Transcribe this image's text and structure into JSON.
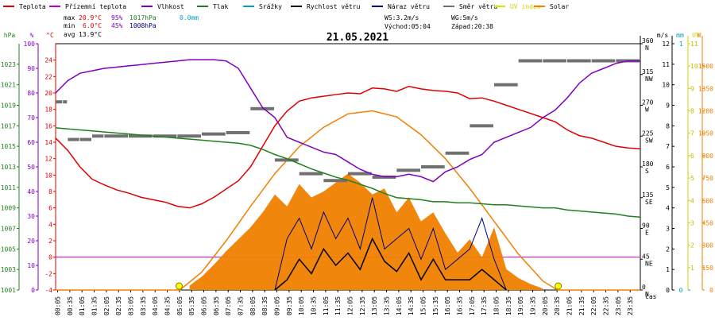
{
  "chart_data": {
    "type": "line",
    "date": "21.05.2021",
    "legend": [
      {
        "key": "temp",
        "label": "Teplota",
        "color": "#e00000"
      },
      {
        "key": "ground",
        "label": "Přízemní teplota",
        "color": "#c000c0"
      },
      {
        "key": "humidity",
        "label": "Vlhkost",
        "color": "#8000c0"
      },
      {
        "key": "pressure",
        "label": "Tlak",
        "color": "#208020"
      },
      {
        "key": "rain",
        "label": "Srážky",
        "color": "#00a0c0"
      },
      {
        "key": "wind",
        "label": "Rychlost větru",
        "color": "#000000"
      },
      {
        "key": "gust",
        "label": "Náraz větru",
        "color": "#000080"
      },
      {
        "key": "winddir",
        "label": "Směr větru",
        "color": "#707070"
      },
      {
        "key": "uv",
        "label": "UV index",
        "color": "#e0e000"
      },
      {
        "key": "solar",
        "label": "Solar",
        "color": "#f08000"
      }
    ],
    "stats": {
      "max_label": "max",
      "max_temp": "20.9°C",
      "max_hum": "95%",
      "max_press": "1017hPa",
      "rain_total": "0.0mm",
      "min_label": "min",
      "min_temp": "6.0°C",
      "min_hum": "45%",
      "min_press": "1008hPa",
      "avg_label": "avg",
      "avg_temp": "13.9°C",
      "ws": "WS:3.2m/s",
      "wg": "WG:5m/s",
      "sunrise": "Východ:05:04",
      "sunset": "Západ:20:38"
    },
    "axes": {
      "hpa": {
        "unit": "hPa",
        "ticks": [
          "1001",
          "1003",
          "1005",
          "1007",
          "1009",
          "1011",
          "1013",
          "1015",
          "1017",
          "1019",
          "1021",
          "1023"
        ],
        "range": [
          1001,
          1025
        ]
      },
      "pct": {
        "unit": "%",
        "ticks": [
          "0",
          "10",
          "20",
          "30",
          "40",
          "50",
          "60",
          "70",
          "80",
          "90",
          "100"
        ],
        "range": [
          0,
          100
        ]
      },
      "temp": {
        "unit": "°C",
        "ticks": [
          "-4",
          "-2",
          "0",
          "2",
          "4",
          "6",
          "8",
          "10",
          "12",
          "14",
          "16",
          "18",
          "20",
          "22",
          "24"
        ],
        "range": [
          -4,
          26
        ]
      },
      "dir": {
        "ticks": [
          "N",
          "NE",
          "E",
          "SE",
          "S",
          "SW",
          "W",
          "NW",
          "N"
        ],
        "values": [
          "0",
          "45",
          "90",
          "135",
          "180",
          "225",
          "270",
          "315",
          "360"
        ],
        "range": [
          0,
          360
        ]
      },
      "ms": {
        "unit": "m/s",
        "ticks": [
          "0",
          "1",
          "2",
          "3",
          "4",
          "5",
          "6",
          "7",
          "8",
          "9",
          "10",
          "11",
          "12"
        ],
        "range": [
          0,
          12
        ]
      },
      "mm": {
        "unit": "mm",
        "ticks": [
          "0",
          "1"
        ],
        "range": [
          0,
          1
        ]
      },
      "uv": {
        "unit": "UV",
        "ticks": [
          "1",
          "2",
          "3",
          "4",
          "5",
          "6",
          "7",
          "8",
          "9",
          "10",
          "11"
        ],
        "range": [
          0,
          11
        ]
      },
      "wm2": {
        "unit": "W",
        "ticks": [
          "0",
          "150",
          "300",
          "450",
          "600",
          "750",
          "900",
          "1050",
          "1200",
          "1350",
          "1500"
        ],
        "range": [
          0,
          1650
        ]
      },
      "x": {
        "unit": "čas",
        "range": [
          0,
          24
        ],
        "ticks": [
          "00:05",
          "00:35",
          "01:05",
          "01:35",
          "02:05",
          "02:35",
          "03:05",
          "03:35",
          "04:05",
          "04:35",
          "05:05",
          "05:35",
          "06:05",
          "06:35",
          "07:05",
          "07:35",
          "08:05",
          "08:35",
          "09:05",
          "09:35",
          "10:05",
          "10:35",
          "11:05",
          "11:35",
          "12:05",
          "12:35",
          "13:05",
          "13:35",
          "14:05",
          "14:35",
          "15:05",
          "15:35",
          "16:05",
          "16:35",
          "17:05",
          "17:35",
          "18:05",
          "18:35",
          "19:05",
          "19:35",
          "20:05",
          "20:35",
          "21:05",
          "21:35",
          "22:05",
          "22:35",
          "23:05",
          "23:35"
        ]
      }
    },
    "series": [
      {
        "key": "temp",
        "name": "Teplota",
        "axis": "temp",
        "x": [
          0,
          0.5,
          1,
          1.5,
          2,
          2.5,
          3,
          3.5,
          4,
          4.5,
          5,
          5.5,
          6,
          6.5,
          7,
          7.5,
          8,
          8.5,
          9,
          9.5,
          10,
          10.5,
          11,
          11.5,
          12,
          12.5,
          13,
          13.5,
          14,
          14.5,
          15,
          15.5,
          16,
          16.5,
          17,
          17.5,
          18,
          18.5,
          19,
          19.5,
          20,
          20.5,
          21,
          21.5,
          22,
          22.5,
          23,
          23.5,
          24
        ],
        "y": [
          14.5,
          13,
          11,
          9.5,
          8.8,
          8.2,
          7.8,
          7.3,
          7,
          6.7,
          6.2,
          6,
          6.5,
          7.3,
          8.3,
          9.3,
          11,
          13.5,
          16,
          17.8,
          19,
          19.4,
          19.6,
          19.8,
          20,
          19.9,
          20.6,
          20.5,
          20.2,
          20.8,
          20.5,
          20.3,
          20.2,
          20,
          19.3,
          19.4,
          19,
          18.5,
          18,
          17.5,
          17,
          16.5,
          15.5,
          14.8,
          14.5,
          14,
          13.5,
          13.3,
          13.2
        ]
      },
      {
        "key": "humidity",
        "name": "Vlhkost",
        "axis": "pct",
        "x": [
          0,
          0.5,
          1,
          1.5,
          2,
          2.5,
          3,
          3.5,
          4,
          4.5,
          5,
          5.5,
          6,
          6.5,
          7,
          7.5,
          8,
          8.5,
          9,
          9.5,
          10,
          10.5,
          11,
          11.5,
          12,
          12.5,
          13,
          13.5,
          14,
          14.5,
          15,
          15.5,
          16,
          16.5,
          17,
          17.5,
          18,
          18.5,
          19,
          19.5,
          20,
          20.5,
          21,
          21.5,
          22,
          22.5,
          23,
          23.5,
          24
        ],
        "y": [
          80,
          85,
          88,
          89,
          90,
          90.5,
          91,
          91.5,
          92,
          92.5,
          93,
          93.5,
          93.5,
          93.5,
          93,
          90,
          82,
          74,
          70,
          62,
          60,
          58,
          56,
          55,
          52,
          49,
          47,
          46,
          46,
          47,
          46,
          44,
          48,
          50,
          53,
          55,
          60,
          62,
          64,
          66,
          70,
          73,
          78,
          84,
          88,
          90,
          92,
          93,
          93
        ]
      },
      {
        "key": "pressure",
        "name": "Tlak",
        "axis": "hpa",
        "x": [
          0,
          0.5,
          1,
          1.5,
          2,
          2.5,
          3,
          3.5,
          4,
          4.5,
          5,
          5.5,
          6,
          6.5,
          7,
          7.5,
          8,
          8.5,
          9,
          9.5,
          10,
          10.5,
          11,
          11.5,
          12,
          12.5,
          13,
          13.5,
          14,
          14.5,
          15,
          15.5,
          16,
          16.5,
          17,
          17.5,
          18,
          18.5,
          19,
          19.5,
          20,
          20.5,
          21,
          21.5,
          22,
          22.5,
          23,
          23.5,
          24
        ],
        "y": [
          1016.8,
          1016.7,
          1016.6,
          1016.5,
          1016.4,
          1016.3,
          1016.2,
          1016.1,
          1016,
          1015.9,
          1015.8,
          1015.7,
          1015.6,
          1015.5,
          1015.4,
          1015.3,
          1015.1,
          1014.7,
          1014.2,
          1013.8,
          1013.3,
          1012.8,
          1012.4,
          1012,
          1011.7,
          1011.3,
          1010.9,
          1010.4,
          1010,
          1009.9,
          1009.8,
          1009.6,
          1009.6,
          1009.5,
          1009.5,
          1009.4,
          1009.3,
          1009.3,
          1009.2,
          1009.1,
          1009,
          1009,
          1008.8,
          1008.7,
          1008.6,
          1008.5,
          1008.4,
          1008.2,
          1008.1
        ]
      },
      {
        "key": "solar",
        "name": "Solar",
        "axis": "wm2",
        "x": [
          0,
          5.1,
          6,
          7,
          8,
          9,
          10,
          11,
          12,
          13,
          14,
          15,
          16,
          17,
          18,
          19,
          20,
          20.6,
          24
        ],
        "y": [
          0,
          0,
          120,
          330,
          560,
          780,
          960,
          1090,
          1180,
          1200,
          1160,
          1040,
          880,
          680,
          460,
          240,
          60,
          0,
          0
        ]
      },
      {
        "key": "solar_measured",
        "name": "Solar",
        "axis": "wm2",
        "x": [
          5.5,
          6,
          6.5,
          7,
          7.5,
          8,
          8.5,
          9,
          9.5,
          10,
          10.5,
          11,
          11.5,
          12,
          12.5,
          13,
          13.5,
          14,
          14.5,
          15,
          15.5,
          16,
          16.5,
          17,
          17.5,
          18,
          18.5,
          19,
          19.5,
          20
        ],
        "y": [
          30,
          90,
          170,
          260,
          340,
          420,
          520,
          640,
          560,
          710,
          620,
          660,
          720,
          780,
          720,
          640,
          680,
          520,
          620,
          460,
          520,
          380,
          250,
          340,
          220,
          420,
          140,
          80,
          40,
          10
        ]
      },
      {
        "key": "wind",
        "name": "Rychlost větru",
        "axis": "ms",
        "x": [
          9,
          9.5,
          10,
          10.5,
          11,
          11.5,
          12,
          12.5,
          13,
          13.5,
          14,
          14.5,
          15,
          15.5,
          16,
          16.5,
          17,
          17.5,
          18,
          18.5
        ],
        "y": [
          0,
          0.5,
          1.5,
          0.8,
          2,
          1.2,
          1.8,
          1,
          2.5,
          1.4,
          0.9,
          1.8,
          0.5,
          1.5,
          0.5,
          0.5,
          0.5,
          1,
          0.5,
          0
        ]
      },
      {
        "key": "gust",
        "name": "Náraz větru",
        "axis": "ms",
        "x": [
          9,
          9.5,
          10,
          10.5,
          11,
          11.5,
          12,
          12.5,
          13,
          13.5,
          14,
          14.5,
          15,
          15.5,
          16,
          16.5,
          17,
          17.5,
          18,
          18.5
        ],
        "y": [
          0,
          2.5,
          3.5,
          2,
          3.8,
          2.5,
          3.5,
          2,
          4.5,
          2,
          2.5,
          3,
          1.5,
          3,
          1,
          1.5,
          2,
          3.5,
          1.5,
          0
        ]
      },
      {
        "key": "winddir",
        "name": "Směr větru",
        "axis": "dir",
        "x": [
          0,
          0.3,
          0.5,
          1,
          1.5,
          2,
          3,
          4,
          5,
          6,
          7,
          8,
          9,
          10,
          11,
          12,
          13,
          14,
          15,
          16,
          17,
          18,
          19,
          20,
          21,
          22,
          23,
          24
        ],
        "y": [
          275,
          275,
          220,
          220,
          225,
          225,
          225,
          225,
          225,
          228,
          230,
          265,
          190,
          170,
          160,
          170,
          165,
          175,
          180,
          200,
          240,
          300,
          335,
          335,
          335,
          335,
          335,
          335
        ]
      }
    ]
  }
}
